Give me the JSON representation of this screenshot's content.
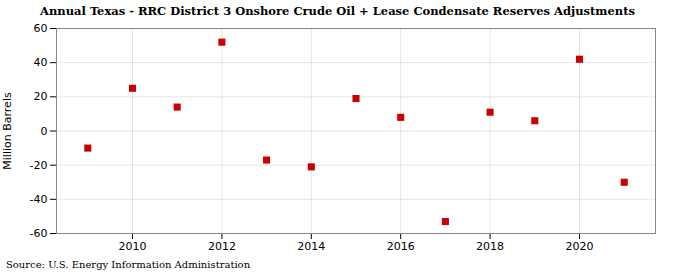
{
  "chart_data": {
    "type": "scatter",
    "title": "Annual Texas - RRC District 3 Onshore Crude Oil + Lease Condensate Reserves Adjustments",
    "ylabel": "Million Barrels",
    "source": "Source: U.S. Energy Information Administration",
    "x": [
      2009,
      2010,
      2011,
      2012,
      2013,
      2014,
      2015,
      2016,
      2017,
      2018,
      2019,
      2020,
      2021
    ],
    "values": [
      -10,
      25,
      14,
      52,
      -17,
      -21,
      19,
      8,
      -53,
      11,
      6,
      42,
      -30
    ],
    "color": "#CC0000",
    "marker": "square",
    "xlim": [
      2008.3,
      2021.7
    ],
    "ylim": [
      -60,
      60
    ],
    "xticks": [
      2010,
      2012,
      2014,
      2016,
      2018,
      2020
    ],
    "yticks": [
      -60,
      -40,
      -20,
      0,
      20,
      40,
      60
    ],
    "grid": true
  }
}
